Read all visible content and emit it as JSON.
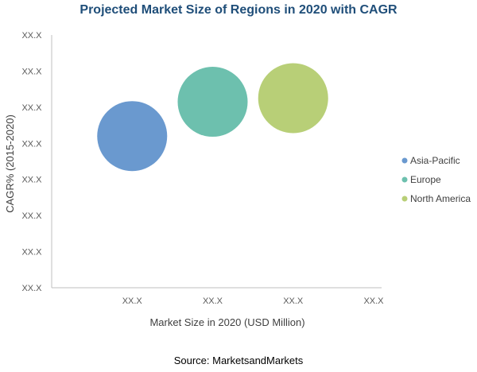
{
  "chart_data": {
    "type": "bubble",
    "title": "Projected Market Size of Regions in 2020 with CAGR",
    "xlabel": "Market Size in 2020 (USD Million)",
    "ylabel": "CAGR% (2015-2020)",
    "x_ticks": [
      "XX.X",
      "XX.X",
      "XX.X",
      "XX.X"
    ],
    "y_ticks": [
      "XX.X",
      "XX.X",
      "XX.X",
      "XX.X",
      "XX.X",
      "XX.X",
      "XX.X",
      "XX.X"
    ],
    "xlim": [
      0,
      4
    ],
    "ylim": [
      0,
      7
    ],
    "grid": false,
    "legend_position": "right",
    "series": [
      {
        "name": "Asia-Pacific",
        "x": 1.0,
        "y": 4.2,
        "size": 1.0,
        "color": "#6a99cf"
      },
      {
        "name": "Europe",
        "x": 2.0,
        "y": 5.15,
        "size": 1.0,
        "color": "#6dc0ae"
      },
      {
        "name": "North America",
        "x": 3.0,
        "y": 5.25,
        "size": 1.0,
        "color": "#b8cf77"
      }
    ]
  },
  "source": "Source: MarketsandMarkets"
}
